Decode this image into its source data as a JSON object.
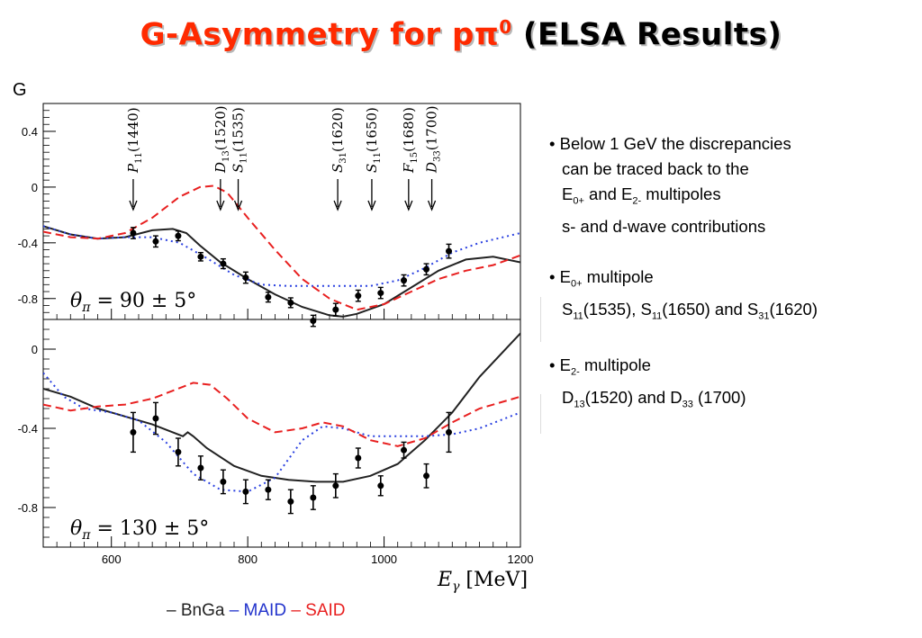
{
  "title": {
    "part1": "G-Asymmetry for p",
    "pi": "π",
    "sup": "0",
    "part2": " (ELSA Results)"
  },
  "chart_data": {
    "type": "line",
    "y_axis_title": "G",
    "xlabel": "E",
    "xlabel_sub": "γ",
    "xlabel_unit": "[MeV]",
    "x_range": [
      500,
      1200
    ],
    "x_ticks": [
      "600",
      "800",
      "1000",
      "1200"
    ],
    "colors": {
      "BnGa": "#222222",
      "MAID": "#2a40e0",
      "SAID": "#e82020"
    },
    "legend": [
      {
        "dash": "–",
        "name": "BnGa",
        "color": "#222222"
      },
      {
        "dash": "–",
        "name": "MAID",
        "color": "#2233cc"
      },
      {
        "dash": "–",
        "name": "SAID",
        "color": "#e82020"
      }
    ],
    "panels": [
      {
        "label_sym": "θ",
        "label_sub": "π",
        "label_val": "= 90 ± 5°",
        "ylim": [
          -0.95,
          0.6
        ],
        "y_ticks": [
          "0.4",
          "0",
          "-0.4",
          "-0.8"
        ],
        "resonances": [
          {
            "name": "P",
            "sub": "11",
            "mass": "(1440)",
            "x": 632
          },
          {
            "name": "D",
            "sub": "13",
            "mass": "(1520)",
            "x": 760
          },
          {
            "name": "S",
            "sub": "11",
            "mass": "(1535)",
            "x": 786
          },
          {
            "name": "S",
            "sub": "31",
            "mass": "(1620)",
            "x": 932
          },
          {
            "name": "S",
            "sub": "11",
            "mass": "(1650)",
            "x": 982
          },
          {
            "name": "F",
            "sub": "15",
            "mass": "(1680)",
            "x": 1036
          },
          {
            "name": "D",
            "sub": "33",
            "mass": "(1700)",
            "x": 1070
          }
        ],
        "points": [
          {
            "x": 632,
            "y": -0.33,
            "err": 0.04
          },
          {
            "x": 665,
            "y": -0.39,
            "err": 0.04
          },
          {
            "x": 698,
            "y": -0.35,
            "err": 0.035
          },
          {
            "x": 731,
            "y": -0.5,
            "err": 0.03
          },
          {
            "x": 764,
            "y": -0.55,
            "err": 0.035
          },
          {
            "x": 797,
            "y": -0.65,
            "err": 0.04
          },
          {
            "x": 830,
            "y": -0.79,
            "err": 0.035
          },
          {
            "x": 863,
            "y": -0.83,
            "err": 0.035
          },
          {
            "x": 896,
            "y": -0.96,
            "err": 0.04
          },
          {
            "x": 929,
            "y": -0.88,
            "err": 0.045
          },
          {
            "x": 962,
            "y": -0.78,
            "err": 0.04
          },
          {
            "x": 995,
            "y": -0.76,
            "err": 0.04
          },
          {
            "x": 1029,
            "y": -0.67,
            "err": 0.04
          },
          {
            "x": 1062,
            "y": -0.59,
            "err": 0.04
          },
          {
            "x": 1095,
            "y": -0.46,
            "err": 0.05
          }
        ],
        "series": [
          {
            "name": "BnGa",
            "x": [
              500,
              540,
              580,
              620,
              660,
              690,
              710,
              730,
              760,
              800,
              840,
              880,
              920,
              940,
              960,
              1000,
              1040,
              1080,
              1120,
              1160,
              1200
            ],
            "y": [
              -0.28,
              -0.34,
              -0.37,
              -0.36,
              -0.31,
              -0.3,
              -0.33,
              -0.42,
              -0.54,
              -0.66,
              -0.77,
              -0.86,
              -0.92,
              -0.93,
              -0.91,
              -0.84,
              -0.72,
              -0.6,
              -0.52,
              -0.5,
              -0.54
            ]
          },
          {
            "name": "MAID",
            "x": [
              500,
              540,
              580,
              620,
              660,
              700,
              740,
              780,
              820,
              860,
              900,
              940,
              980,
              1020,
              1060,
              1100,
              1140,
              1200
            ],
            "y": [
              -0.28,
              -0.34,
              -0.37,
              -0.36,
              -0.36,
              -0.4,
              -0.51,
              -0.63,
              -0.7,
              -0.71,
              -0.71,
              -0.71,
              -0.71,
              -0.67,
              -0.58,
              -0.47,
              -0.4,
              -0.33
            ]
          },
          {
            "name": "SAID",
            "x": [
              500,
              540,
              580,
              620,
              660,
              700,
              730,
              750,
              770,
              800,
              840,
              880,
              920,
              960,
              1000,
              1040,
              1080,
              1120,
              1160,
              1200
            ],
            "y": [
              -0.32,
              -0.36,
              -0.37,
              -0.33,
              -0.22,
              -0.07,
              0.0,
              0.01,
              -0.04,
              -0.22,
              -0.45,
              -0.66,
              -0.8,
              -0.88,
              -0.84,
              -0.75,
              -0.66,
              -0.6,
              -0.56,
              -0.49
            ]
          }
        ]
      },
      {
        "label_sym": "θ",
        "label_sub": "π",
        "label_val": "= 130 ± 5°",
        "ylim": [
          -1.0,
          0.15
        ],
        "y_ticks": [
          "0",
          "-0.4",
          "-0.8"
        ],
        "points": [
          {
            "x": 632,
            "y": -0.42,
            "err": 0.1
          },
          {
            "x": 665,
            "y": -0.35,
            "err": 0.08
          },
          {
            "x": 698,
            "y": -0.52,
            "err": 0.07
          },
          {
            "x": 731,
            "y": -0.6,
            "err": 0.06
          },
          {
            "x": 764,
            "y": -0.67,
            "err": 0.06
          },
          {
            "x": 797,
            "y": -0.72,
            "err": 0.06
          },
          {
            "x": 830,
            "y": -0.71,
            "err": 0.05
          },
          {
            "x": 863,
            "y": -0.77,
            "err": 0.06
          },
          {
            "x": 896,
            "y": -0.75,
            "err": 0.06
          },
          {
            "x": 929,
            "y": -0.69,
            "err": 0.06
          },
          {
            "x": 962,
            "y": -0.55,
            "err": 0.05
          },
          {
            "x": 995,
            "y": -0.69,
            "err": 0.05
          },
          {
            "x": 1029,
            "y": -0.51,
            "err": 0.04
          },
          {
            "x": 1062,
            "y": -0.64,
            "err": 0.06
          },
          {
            "x": 1095,
            "y": -0.42,
            "err": 0.1
          }
        ],
        "series": [
          {
            "name": "BnGa",
            "x": [
              500,
              540,
              580,
              620,
              660,
              690,
              705,
              712,
              720,
              740,
              780,
              820,
              860,
              900,
              940,
              980,
              1020,
              1060,
              1100,
              1140,
              1200
            ],
            "y": [
              -0.2,
              -0.24,
              -0.3,
              -0.34,
              -0.38,
              -0.42,
              -0.44,
              -0.42,
              -0.44,
              -0.5,
              -0.59,
              -0.64,
              -0.66,
              -0.67,
              -0.67,
              -0.64,
              -0.58,
              -0.46,
              -0.32,
              -0.14,
              0.08
            ]
          },
          {
            "name": "MAID",
            "x": [
              500,
              530,
              560,
              600,
              640,
              680,
              720,
              760,
              800,
              840,
              880,
              910,
              940,
              980,
              1020,
              1060,
              1100,
              1140,
              1200
            ],
            "y": [
              -0.12,
              -0.24,
              -0.3,
              -0.32,
              -0.36,
              -0.47,
              -0.63,
              -0.71,
              -0.72,
              -0.65,
              -0.46,
              -0.39,
              -0.4,
              -0.44,
              -0.44,
              -0.44,
              -0.43,
              -0.4,
              -0.32
            ]
          },
          {
            "name": "SAID",
            "x": [
              500,
              540,
              580,
              620,
              660,
              690,
              720,
              745,
              770,
              800,
              840,
              880,
              910,
              940,
              980,
              1020,
              1060,
              1100,
              1140,
              1200
            ],
            "y": [
              -0.28,
              -0.31,
              -0.29,
              -0.28,
              -0.25,
              -0.21,
              -0.17,
              -0.18,
              -0.25,
              -0.35,
              -0.42,
              -0.4,
              -0.37,
              -0.39,
              -0.46,
              -0.49,
              -0.45,
              -0.37,
              -0.3,
              -0.24
            ]
          }
        ]
      }
    ]
  },
  "bullets": [
    {
      "marker": "•",
      "lines": [
        {
          "text": "Below 1 GeV the discrepancies"
        },
        {
          "text": "can be traced back to the"
        },
        {
          "parts": [
            [
              "E",
              ""
            ],
            [
              "0+",
              "sub"
            ],
            [
              " and E",
              ""
            ],
            [
              "2-",
              "sub"
            ],
            [
              " multipoles",
              ""
            ]
          ]
        },
        {
          "text": "s- and d-wave contributions"
        }
      ]
    },
    {
      "marker": "•",
      "lines": [
        {
          "parts": [
            [
              "E",
              ""
            ],
            [
              "0+",
              "sub"
            ],
            [
              " multipole",
              ""
            ]
          ]
        },
        {
          "parts": [
            [
              "S",
              ""
            ],
            [
              "11",
              "sub"
            ],
            [
              "(1535), S",
              ""
            ],
            [
              "11",
              "sub"
            ],
            [
              "(1650) and S",
              ""
            ],
            [
              "31",
              "sub"
            ],
            [
              "(1620)",
              ""
            ]
          ]
        }
      ]
    },
    {
      "marker": "•",
      "lines": [
        {
          "parts": [
            [
              "E",
              ""
            ],
            [
              "2-",
              "sub"
            ],
            [
              " multipole",
              ""
            ]
          ]
        },
        {
          "parts": [
            [
              "D",
              ""
            ],
            [
              "13",
              "sub"
            ],
            [
              "(1520) and D",
              ""
            ],
            [
              "33",
              "sub"
            ],
            [
              " (1700)",
              ""
            ]
          ]
        }
      ]
    }
  ]
}
